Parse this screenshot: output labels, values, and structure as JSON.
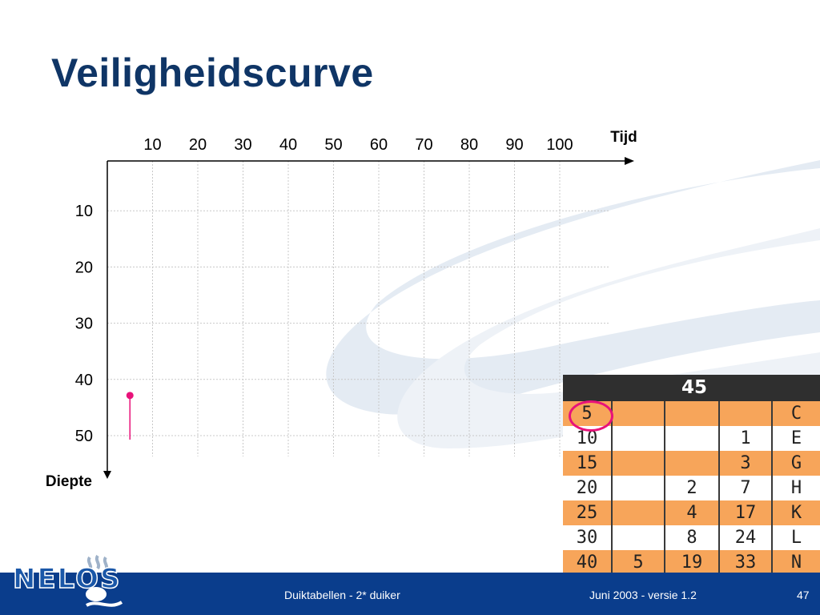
{
  "slide": {
    "title": "Veiligheidscurve"
  },
  "chart_data": {
    "type": "scatter",
    "title": "",
    "xlabel": "Tijd",
    "ylabel": "Diepte",
    "x_ticks": [
      "10",
      "20",
      "30",
      "40",
      "50",
      "60",
      "70",
      "80",
      "90",
      "100"
    ],
    "y_ticks": [
      "10",
      "20",
      "30",
      "40",
      "50"
    ],
    "xlim": [
      0,
      110
    ],
    "ylim": [
      0,
      55
    ],
    "y_inverted": true,
    "grid": true,
    "series": [
      {
        "x": [
          5,
          5
        ],
        "y": [
          43,
          50
        ],
        "marker": "dot-with-line",
        "color": "#e8127a"
      }
    ]
  },
  "table": {
    "header": "45",
    "rows": [
      [
        "5",
        "",
        "",
        "",
        "C"
      ],
      [
        "10",
        "",
        "",
        "1",
        "E"
      ],
      [
        "15",
        "",
        "",
        "3",
        "G"
      ],
      [
        "20",
        "",
        "2",
        "7",
        "H"
      ],
      [
        "25",
        "",
        "4",
        "17",
        "K"
      ],
      [
        "30",
        "",
        "8",
        "24",
        "L"
      ],
      [
        "40",
        "5",
        "19",
        "33",
        "N"
      ]
    ],
    "highlight_color": "#e8127a"
  },
  "footer": {
    "center": "Duiktabellen - 2* duiker",
    "date": "Juni 2003 - versie 1.2",
    "page": "47"
  },
  "logo": {
    "text": "NELOS",
    "icon": "diver-logo-icon"
  },
  "colors": {
    "title": "#0f3566",
    "footer_bg": "#0a3d8c",
    "table_orange": "#f7a55a",
    "accent": "#e8127a"
  }
}
